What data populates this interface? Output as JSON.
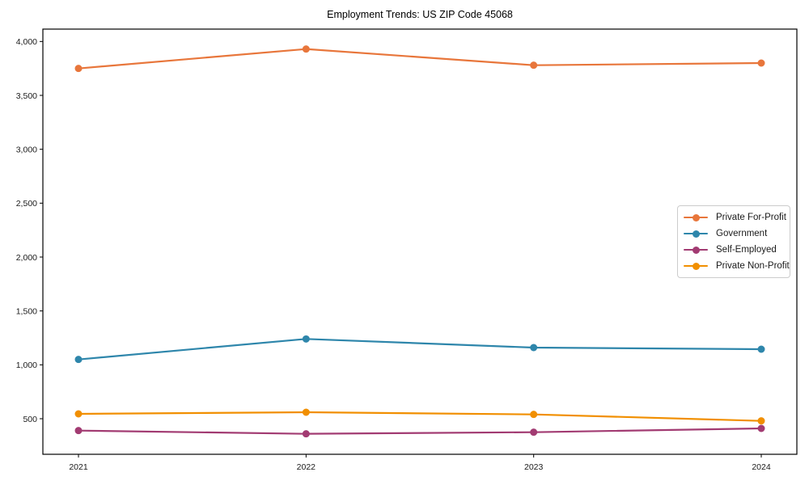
{
  "chart_data": {
    "type": "line",
    "title": "Employment Trends: US ZIP Code 45068",
    "x_labels": [
      "2021",
      "2022",
      "2023",
      "2024"
    ],
    "series": [
      {
        "name": "Private For-Profit",
        "color": "#E8763B",
        "values": [
          3750,
          3930,
          3780,
          3800
        ]
      },
      {
        "name": "Government",
        "color": "#2E86AB",
        "values": [
          1050,
          1240,
          1160,
          1145
        ]
      },
      {
        "name": "Self-Employed",
        "color": "#A23B72",
        "values": [
          390,
          360,
          375,
          410
        ]
      },
      {
        "name": "Private Non-Profit",
        "color": "#F18F01",
        "values": [
          545,
          560,
          540,
          480
        ]
      }
    ],
    "yticks": [
      500,
      1000,
      1500,
      2000,
      2500,
      3000,
      3500,
      4000
    ],
    "ytick_labels": [
      "500",
      "1,000",
      "1,500",
      "2,000",
      "2,500",
      "3,000",
      "3,500",
      "4,000"
    ],
    "ylim": [
      170,
      4115
    ],
    "grid": false,
    "legend_position": "center-right",
    "marker": "circle",
    "axis_color": "#000000",
    "tick_label_color": "#1a1a1a"
  }
}
